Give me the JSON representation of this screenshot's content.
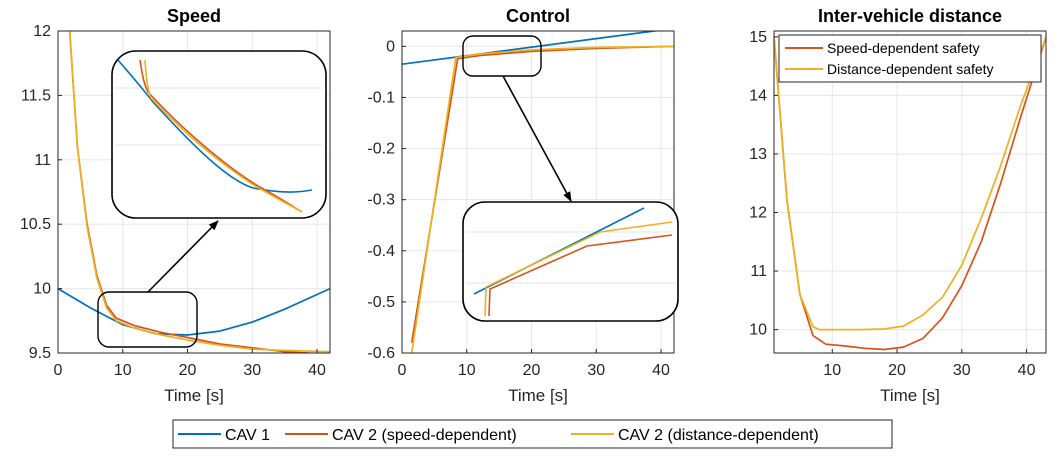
{
  "colors": {
    "cav1": "#0072BD",
    "speed_dep": "#D95319",
    "dist_dep": "#EDB120",
    "grid": "#e6e6e6",
    "axis": "#262626"
  },
  "legend": {
    "entries": [
      "CAV 1",
      "CAV 2 (speed-dependent)",
      "CAV 2 (distance-dependent)"
    ],
    "placement": "bottom-center"
  },
  "chart_data": [
    {
      "type": "line",
      "title": "Speed",
      "xlabel": "Time [s]",
      "ylabel": "",
      "xlim": [
        0,
        42
      ],
      "ylim": [
        9.5,
        12
      ],
      "xticks": [
        0,
        10,
        20,
        30,
        40
      ],
      "yticks": [
        9.5,
        10,
        10.5,
        11,
        11.5,
        12
      ],
      "ytick_labels": [
        "9.5",
        "10",
        "10.5",
        "11",
        "11.5",
        "12"
      ],
      "grid": true,
      "series": [
        {
          "name": "CAV 1",
          "x": [
            0,
            5,
            10,
            15,
            20,
            25,
            30,
            35,
            42
          ],
          "y": [
            10.0,
            9.85,
            9.72,
            9.65,
            9.64,
            9.67,
            9.74,
            9.84,
            10.0
          ]
        },
        {
          "name": "CAV 2 (speed-dependent)",
          "x": [
            1.8,
            3,
            4.5,
            6,
            7.5,
            9,
            12,
            16,
            20,
            25,
            30,
            35,
            42
          ],
          "y": [
            12.0,
            11.1,
            10.5,
            10.1,
            9.87,
            9.77,
            9.71,
            9.66,
            9.62,
            9.57,
            9.54,
            9.51,
            9.49
          ]
        },
        {
          "name": "CAV 2 (distance-dependent)",
          "x": [
            1.8,
            3,
            4.5,
            6,
            7.5,
            9,
            12,
            16,
            20,
            25,
            30,
            35,
            42
          ],
          "y": [
            12.0,
            11.1,
            10.48,
            10.08,
            9.85,
            9.75,
            9.69,
            9.64,
            9.6,
            9.56,
            9.53,
            9.52,
            9.51
          ]
        }
      ],
      "annotations": [
        "zoom box around t = 6-21 s magnifying curve separation"
      ]
    },
    {
      "type": "line",
      "title": "Control",
      "xlabel": "Time [s]",
      "ylabel": "",
      "xlim": [
        0,
        42
      ],
      "ylim": [
        -0.6,
        0.03
      ],
      "xticks": [
        0,
        10,
        20,
        30,
        40
      ],
      "yticks": [
        0,
        -0.1,
        -0.2,
        -0.3,
        -0.4,
        -0.5,
        -0.6
      ],
      "ytick_labels": [
        "0",
        "-0.1",
        "-0.2",
        "-0.3",
        "-0.4",
        "-0.5",
        "-0.6"
      ],
      "grid": true,
      "series": [
        {
          "name": "CAV 1",
          "x": [
            0,
            42
          ],
          "y": [
            -0.035,
            0.035
          ]
        },
        {
          "name": "CAV 2 (speed-dependent)",
          "x": [
            1.5,
            8.6,
            12,
            20,
            30,
            42
          ],
          "y": [
            -0.58,
            -0.024,
            -0.018,
            -0.01,
            -0.004,
            0.0
          ]
        },
        {
          "name": "CAV 2 (distance-dependent)",
          "x": [
            1.5,
            8.3,
            12,
            20,
            30,
            42
          ],
          "y": [
            -0.6,
            -0.022,
            -0.015,
            -0.007,
            -0.002,
            0.0
          ]
        }
      ],
      "annotations": [
        "zoom box around t = 8-19 s near u = 0"
      ]
    },
    {
      "type": "line",
      "title": "Inter-vehicle distance",
      "xlabel": "Time [s]",
      "ylabel": "",
      "xlim": [
        1,
        43
      ],
      "ylim": [
        9.6,
        15.1
      ],
      "xticks": [
        10,
        20,
        30,
        40
      ],
      "yticks": [
        10,
        11,
        12,
        13,
        14,
        15
      ],
      "ytick_labels": [
        "10",
        "11",
        "12",
        "13",
        "14",
        "15"
      ],
      "grid": true,
      "legend": [
        "Speed-dependent safety",
        "Distance-dependent safety"
      ],
      "series": [
        {
          "name": "Speed-dependent safety",
          "x": [
            1,
            3,
            5,
            7,
            9,
            12,
            15,
            18,
            21,
            24,
            27,
            30,
            33,
            36,
            39,
            43
          ],
          "y": [
            15.0,
            12.2,
            10.6,
            9.9,
            9.75,
            9.72,
            9.68,
            9.66,
            9.7,
            9.85,
            10.2,
            10.75,
            11.5,
            12.5,
            13.6,
            15.0
          ]
        },
        {
          "name": "Distance-dependent safety",
          "x": [
            1,
            3,
            5,
            7,
            8,
            10,
            14,
            18,
            21,
            24,
            27,
            30,
            33,
            36,
            39,
            43
          ],
          "y": [
            15.0,
            12.2,
            10.6,
            10.05,
            10.0,
            10.0,
            10.0,
            10.01,
            10.06,
            10.25,
            10.55,
            11.1,
            11.9,
            12.8,
            13.8,
            15.0
          ]
        }
      ]
    }
  ]
}
